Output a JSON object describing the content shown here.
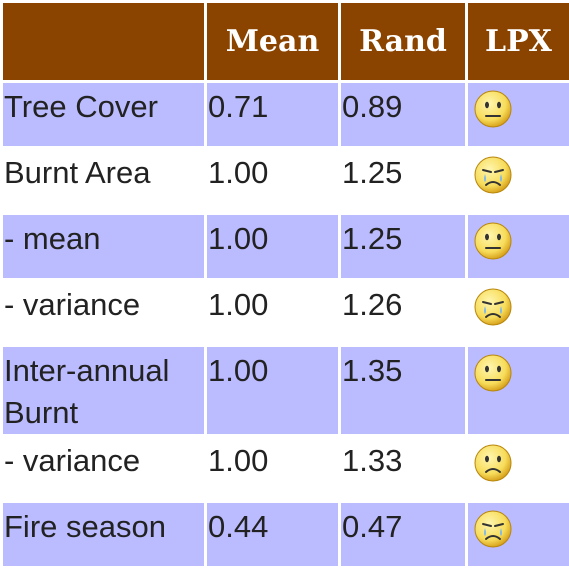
{
  "header": {
    "col0": "",
    "col1": "Mean",
    "col2": "Rand",
    "col3": "LPX"
  },
  "rows": [
    {
      "label": "Tree Cover",
      "mean": "0.71",
      "rand": "0.89",
      "lpx": "neutral-face-icon"
    },
    {
      "label": "Burnt Area",
      "mean": "1.00",
      "rand": "1.25",
      "lpx": "crying-face-icon"
    },
    {
      "label": "- mean",
      "mean": "1.00",
      "rand": "1.25",
      "lpx": "neutral-face-icon"
    },
    {
      "label": "- variance",
      "mean": "1.00",
      "rand": "1.26",
      "lpx": "crying-face-icon"
    },
    {
      "label": "Inter-annual Burnt",
      "mean": "1.00",
      "rand": "1.35",
      "lpx": "neutral-face-icon"
    },
    {
      "label": "- variance",
      "mean": "1.00",
      "rand": "1.33",
      "lpx": "sad-face-icon"
    },
    {
      "label": "Fire season",
      "mean": "0.44",
      "rand": "0.47",
      "lpx": "crying-face-icon"
    }
  ],
  "colors": {
    "header_bg": "#8b4400",
    "row_stripe": "#bbbbff",
    "face_fill": "#f7dc5a"
  }
}
